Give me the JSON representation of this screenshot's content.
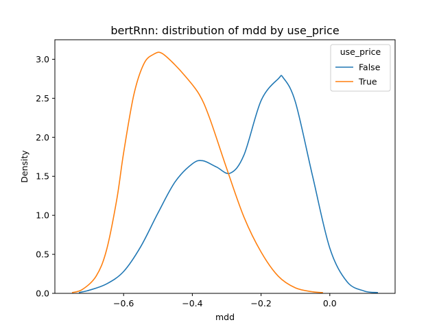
{
  "chart_data": {
    "type": "line",
    "title": "bertRnn: distribution of mdd by use_price",
    "xlabel": "mdd",
    "ylabel": "Density",
    "xlim": [
      -0.8,
      0.19
    ],
    "ylim": [
      0,
      3.25
    ],
    "xticks": [
      -0.6,
      -0.4,
      -0.2,
      0.0
    ],
    "xtick_labels": [
      "−0.6",
      "−0.4",
      "−0.2",
      "0.0"
    ],
    "yticks": [
      0.0,
      0.5,
      1.0,
      1.5,
      2.0,
      2.5,
      3.0
    ],
    "ytick_labels": [
      "0.0",
      "0.5",
      "1.0",
      "1.5",
      "2.0",
      "2.5",
      "3.0"
    ],
    "grid": false,
    "legend": {
      "title": "use_price",
      "position": "top-right"
    },
    "series": [
      {
        "name": "False",
        "color": "#1f77b4",
        "x": [
          -0.73,
          -0.7,
          -0.65,
          -0.6,
          -0.55,
          -0.5,
          -0.45,
          -0.4,
          -0.37,
          -0.33,
          -0.29,
          -0.25,
          -0.2,
          -0.15,
          -0.135,
          -0.1,
          -0.05,
          0.0,
          0.05,
          0.1,
          0.14
        ],
        "y": [
          0.01,
          0.04,
          0.12,
          0.28,
          0.6,
          1.03,
          1.43,
          1.66,
          1.7,
          1.62,
          1.54,
          1.77,
          2.47,
          2.75,
          2.76,
          2.45,
          1.5,
          0.58,
          0.15,
          0.03,
          0.01
        ]
      },
      {
        "name": "True",
        "color": "#ff7f0e",
        "x": [
          -0.75,
          -0.72,
          -0.68,
          -0.65,
          -0.62,
          -0.6,
          -0.57,
          -0.54,
          -0.51,
          -0.49,
          -0.46,
          -0.42,
          -0.38,
          -0.35,
          -0.3,
          -0.25,
          -0.2,
          -0.15,
          -0.1,
          -0.05,
          -0.02
        ],
        "y": [
          0.01,
          0.05,
          0.22,
          0.55,
          1.2,
          1.8,
          2.55,
          2.95,
          3.07,
          3.08,
          2.97,
          2.78,
          2.55,
          2.25,
          1.6,
          0.98,
          0.53,
          0.22,
          0.07,
          0.02,
          0.01
        ]
      }
    ]
  }
}
